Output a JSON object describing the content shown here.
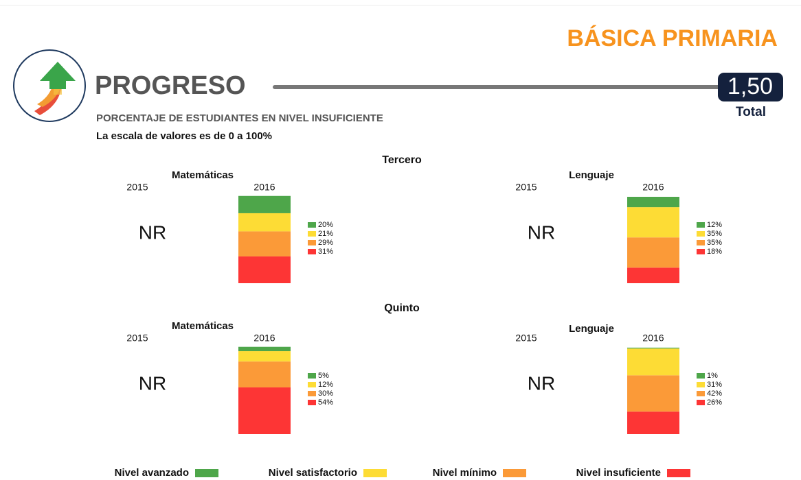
{
  "header": {
    "title": "BÁSICA PRIMARIA",
    "heading": "PROGRESO",
    "total_value": "1,50",
    "total_label": "Total",
    "subtitle": "PORCENTAJE DE ESTUDIANTES EN NIVEL INSUFICIENTE",
    "note": "La escala de valores es de 0 a 100%"
  },
  "chart_data": {
    "type": "stacked_bar",
    "ylim": [
      0,
      100
    ],
    "series": [
      {
        "name": "Nivel avanzado",
        "color": "#4ea64a"
      },
      {
        "name": "Nivel satisfactorio",
        "color": "#fddc35"
      },
      {
        "name": "Nivel mínimo",
        "color": "#fb9a38"
      },
      {
        "name": "Nivel insuficiente",
        "color": "#fd3535"
      }
    ],
    "sections": [
      {
        "title": "Tercero",
        "panels": [
          {
            "title": "Matemáticas",
            "categories": [
              "2015",
              "2016"
            ],
            "missing_label": "NR",
            "values": [
              [
                null,
                20
              ],
              [
                null,
                21
              ],
              [
                null,
                29
              ],
              [
                null,
                31
              ]
            ],
            "value_labels": [
              [
                null,
                "20%"
              ],
              [
                null,
                "21%"
              ],
              [
                null,
                "29%"
              ],
              [
                null,
                "31%"
              ]
            ]
          },
          {
            "title": "Lenguaje",
            "categories": [
              "2015",
              "2016"
            ],
            "missing_label": "NR",
            "values": [
              [
                null,
                12
              ],
              [
                null,
                35
              ],
              [
                null,
                35
              ],
              [
                null,
                18
              ]
            ],
            "value_labels": [
              [
                null,
                "12%"
              ],
              [
                null,
                "35%"
              ],
              [
                null,
                "35%"
              ],
              [
                null,
                "18%"
              ]
            ]
          }
        ]
      },
      {
        "title": "Quinto",
        "panels": [
          {
            "title": "Matemáticas",
            "categories": [
              "2015",
              "2016"
            ],
            "missing_label": "NR",
            "values": [
              [
                null,
                5
              ],
              [
                null,
                12
              ],
              [
                null,
                30
              ],
              [
                null,
                54
              ]
            ],
            "value_labels": [
              [
                null,
                "5%"
              ],
              [
                null,
                "12%"
              ],
              [
                null,
                "30%"
              ],
              [
                null,
                "54%"
              ]
            ]
          },
          {
            "title": "Lenguaje",
            "categories": [
              "2015",
              "2016"
            ],
            "missing_label": "NR",
            "values": [
              [
                null,
                1
              ],
              [
                null,
                31
              ],
              [
                null,
                42
              ],
              [
                null,
                26
              ]
            ],
            "value_labels": [
              [
                null,
                "1%"
              ],
              [
                null,
                "31%"
              ],
              [
                null,
                "42%"
              ],
              [
                null,
                "26%"
              ]
            ]
          }
        ]
      }
    ]
  }
}
